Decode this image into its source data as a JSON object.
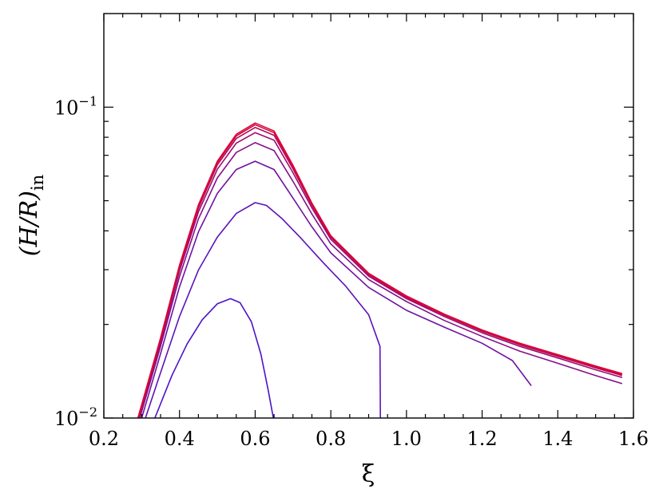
{
  "chart_data": {
    "type": "line",
    "title": "",
    "xlabel": "ξ",
    "ylabel": {
      "main": "(H/R)",
      "sub": "in"
    },
    "xlim": [
      0.2,
      1.6
    ],
    "ylim": [
      0.01,
      0.2
    ],
    "yscale": "log",
    "grid": false,
    "legend": "none",
    "x_ticks": [
      {
        "value": 0.2,
        "label": "0.2"
      },
      {
        "value": 0.4,
        "label": "0.4"
      },
      {
        "value": 0.6,
        "label": "0.6"
      },
      {
        "value": 0.8,
        "label": "0.8"
      },
      {
        "value": 1.0,
        "label": "1.0"
      },
      {
        "value": 1.2,
        "label": "1.2"
      },
      {
        "value": 1.4,
        "label": "1.4"
      },
      {
        "value": 1.6,
        "label": "1.6"
      }
    ],
    "y_ticks": [
      {
        "value": 0.01,
        "base": "10",
        "exp": "−2"
      },
      {
        "value": 0.1,
        "base": "10",
        "exp": "−1"
      }
    ],
    "series": [
      {
        "color": "#4B13C8",
        "points": [
          [
            0.335,
            0.01
          ],
          [
            0.38,
            0.0137
          ],
          [
            0.42,
            0.0173
          ],
          [
            0.46,
            0.0207
          ],
          [
            0.5,
            0.0233
          ],
          [
            0.535,
            0.0242
          ],
          [
            0.56,
            0.0235
          ],
          [
            0.59,
            0.0204
          ],
          [
            0.615,
            0.0161
          ],
          [
            0.635,
            0.0122
          ],
          [
            0.648,
            0.01
          ]
        ]
      },
      {
        "color": "#5E12B8",
        "points": [
          [
            0.31,
            0.01
          ],
          [
            0.35,
            0.014
          ],
          [
            0.4,
            0.0212
          ],
          [
            0.45,
            0.0299
          ],
          [
            0.5,
            0.0382
          ],
          [
            0.55,
            0.0455
          ],
          [
            0.6,
            0.0493
          ],
          [
            0.63,
            0.0483
          ],
          [
            0.67,
            0.0439
          ],
          [
            0.72,
            0.038
          ],
          [
            0.78,
            0.0316
          ],
          [
            0.84,
            0.0265
          ],
          [
            0.9,
            0.0215
          ],
          [
            0.93,
            0.017
          ],
          [
            0.931,
            0.01
          ]
        ]
      },
      {
        "color": "#7012A0",
        "points": [
          [
            0.3,
            0.01
          ],
          [
            0.35,
            0.0161
          ],
          [
            0.4,
            0.0264
          ],
          [
            0.45,
            0.0397
          ],
          [
            0.5,
            0.0528
          ],
          [
            0.55,
            0.063
          ],
          [
            0.6,
            0.067
          ],
          [
            0.65,
            0.063
          ],
          [
            0.7,
            0.051
          ],
          [
            0.75,
            0.0412
          ],
          [
            0.8,
            0.034
          ],
          [
            0.9,
            0.0263
          ],
          [
            1.0,
            0.0222
          ],
          [
            1.1,
            0.0196
          ],
          [
            1.2,
            0.0174
          ],
          [
            1.28,
            0.0153
          ],
          [
            1.33,
            0.0127
          ]
        ]
      },
      {
        "color": "#85108A",
        "points": [
          [
            0.295,
            0.01
          ],
          [
            0.35,
            0.017
          ],
          [
            0.4,
            0.0285
          ],
          [
            0.45,
            0.0437
          ],
          [
            0.5,
            0.0592
          ],
          [
            0.55,
            0.0715
          ],
          [
            0.6,
            0.0769
          ],
          [
            0.65,
            0.0725
          ],
          [
            0.7,
            0.0577
          ],
          [
            0.75,
            0.0453
          ],
          [
            0.8,
            0.0363
          ],
          [
            0.9,
            0.0279
          ],
          [
            1.0,
            0.0237
          ],
          [
            1.1,
            0.0206
          ],
          [
            1.2,
            0.0183
          ],
          [
            1.3,
            0.0164
          ],
          [
            1.4,
            0.015
          ],
          [
            1.5,
            0.0137
          ],
          [
            1.57,
            0.0129
          ]
        ]
      },
      {
        "color": "#A00C6E",
        "points": [
          [
            0.293,
            0.01
          ],
          [
            0.35,
            0.0175
          ],
          [
            0.4,
            0.0297
          ],
          [
            0.45,
            0.046
          ],
          [
            0.5,
            0.0631
          ],
          [
            0.55,
            0.0766
          ],
          [
            0.6,
            0.0828
          ],
          [
            0.65,
            0.0783
          ],
          [
            0.7,
            0.0615
          ],
          [
            0.75,
            0.0474
          ],
          [
            0.8,
            0.0376
          ],
          [
            0.9,
            0.0286
          ],
          [
            1.0,
            0.0242
          ],
          [
            1.1,
            0.0212
          ],
          [
            1.2,
            0.0188
          ],
          [
            1.3,
            0.017
          ],
          [
            1.4,
            0.0156
          ],
          [
            1.5,
            0.0143
          ],
          [
            1.57,
            0.0135
          ]
        ]
      },
      {
        "color": "#B80A58",
        "points": [
          [
            0.292,
            0.01
          ],
          [
            0.35,
            0.0178
          ],
          [
            0.4,
            0.0303
          ],
          [
            0.45,
            0.0473
          ],
          [
            0.5,
            0.0652
          ],
          [
            0.55,
            0.0793
          ],
          [
            0.6,
            0.086
          ],
          [
            0.65,
            0.0812
          ],
          [
            0.7,
            0.0633
          ],
          [
            0.75,
            0.0483
          ],
          [
            0.8,
            0.0381
          ],
          [
            0.9,
            0.0289
          ],
          [
            1.0,
            0.0244
          ],
          [
            1.1,
            0.0214
          ],
          [
            1.2,
            0.019
          ],
          [
            1.3,
            0.0172
          ],
          [
            1.4,
            0.0158
          ],
          [
            1.5,
            0.0145
          ],
          [
            1.57,
            0.0137
          ]
        ]
      },
      {
        "color": "#CC0844",
        "points": [
          [
            0.291,
            0.01
          ],
          [
            0.35,
            0.018
          ],
          [
            0.4,
            0.0307
          ],
          [
            0.45,
            0.048
          ],
          [
            0.5,
            0.0663
          ],
          [
            0.55,
            0.0808
          ],
          [
            0.6,
            0.0878
          ],
          [
            0.65,
            0.0828
          ],
          [
            0.7,
            0.0643
          ],
          [
            0.75,
            0.0488
          ],
          [
            0.8,
            0.0384
          ],
          [
            0.9,
            0.0291
          ],
          [
            1.0,
            0.0246
          ],
          [
            1.1,
            0.0215
          ],
          [
            1.2,
            0.0191
          ],
          [
            1.3,
            0.0173
          ],
          [
            1.4,
            0.0159
          ],
          [
            1.5,
            0.0146
          ],
          [
            1.57,
            0.0138
          ]
        ]
      },
      {
        "color": "#DC0636",
        "points": [
          [
            0.29,
            0.01
          ],
          [
            0.35,
            0.0181
          ],
          [
            0.4,
            0.031
          ],
          [
            0.45,
            0.0485
          ],
          [
            0.5,
            0.067
          ],
          [
            0.55,
            0.0818
          ],
          [
            0.6,
            0.0889
          ],
          [
            0.65,
            0.0838
          ],
          [
            0.7,
            0.065
          ],
          [
            0.75,
            0.0491
          ],
          [
            0.8,
            0.0386
          ],
          [
            0.9,
            0.0292
          ],
          [
            1.0,
            0.0247
          ],
          [
            1.1,
            0.0216
          ],
          [
            1.2,
            0.0192
          ],
          [
            1.3,
            0.0174
          ],
          [
            1.4,
            0.016
          ],
          [
            1.5,
            0.0147
          ],
          [
            1.57,
            0.0139
          ]
        ]
      }
    ]
  }
}
